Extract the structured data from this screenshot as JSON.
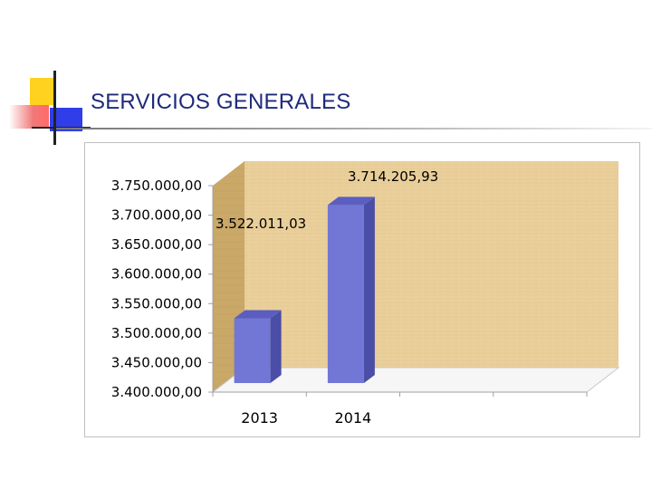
{
  "slide": {
    "title": "SERVICIOS GENERALES",
    "accent_colors": {
      "yellow": "#ffd21f",
      "red": "#f06a6a",
      "blue": "#2f3ee8",
      "title_text": "#1f2a7a"
    }
  },
  "chart_data": {
    "type": "bar",
    "title": "",
    "xlabel": "",
    "ylabel": "",
    "categories": [
      "2013",
      "2014",
      "",
      ""
    ],
    "series": [
      {
        "name": "Servicios Generales",
        "values": [
          3522011.03,
          3714205.93,
          null,
          null
        ]
      }
    ],
    "data_labels": [
      "3.522.011,03",
      "3.714.205,93"
    ],
    "ylim": [
      3400000,
      3750000
    ],
    "ytick_labels": [
      "3.750.000,00",
      "3.700.000,00",
      "3.650.000,00",
      "3.600.000,00",
      "3.550.000,00",
      "3.500.000,00",
      "3.450.000,00",
      "3.400.000,00"
    ],
    "ytick_values": [
      3750000,
      3700000,
      3650000,
      3600000,
      3550000,
      3500000,
      3450000,
      3400000
    ],
    "grid": false,
    "bar_color": "#7276d4",
    "wall_color": "#e9cf9a"
  }
}
